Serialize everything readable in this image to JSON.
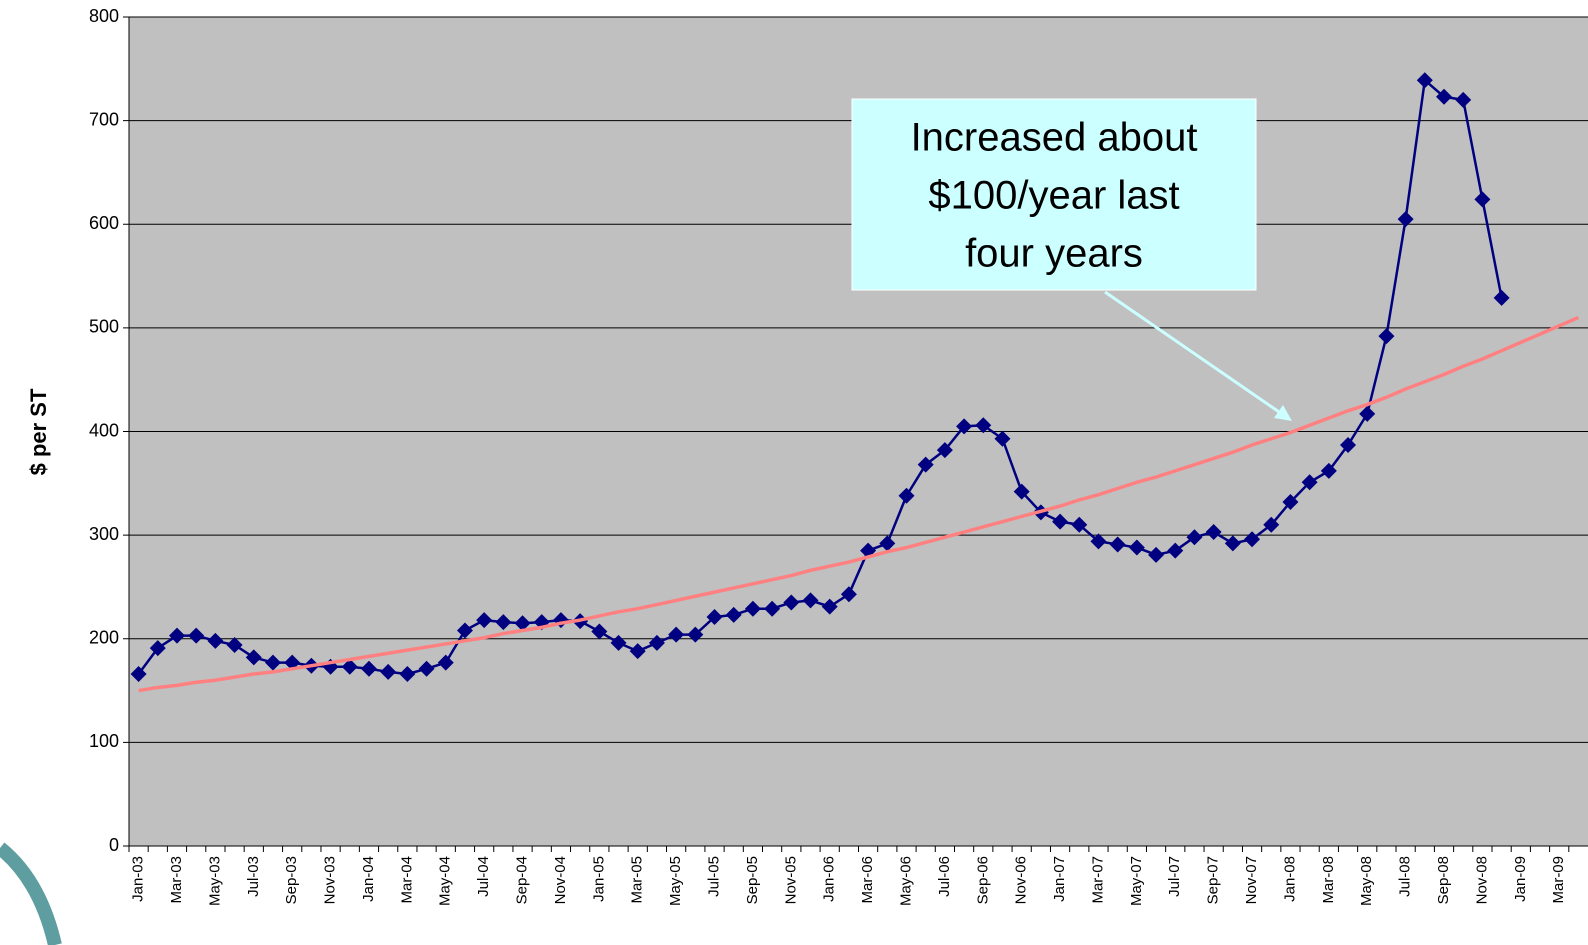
{
  "chart_data": {
    "type": "line",
    "y_label": "$ per ST",
    "annotation": {
      "lines": [
        "Increased about",
        "$100/year last",
        "four years"
      ]
    },
    "categories": [
      "Jan-03",
      null,
      "Mar-03",
      null,
      "May-03",
      null,
      "Jul-03",
      null,
      "Sep-03",
      null,
      "Nov-03",
      null,
      "Jan-04",
      null,
      "Mar-04",
      null,
      "May-04",
      null,
      "Jul-04",
      null,
      "Sep-04",
      null,
      "Nov-04",
      null,
      "Jan-05",
      null,
      "Mar-05",
      null,
      "May-05",
      null,
      "Jul-05",
      null,
      "Sep-05",
      null,
      "Nov-05",
      null,
      "Jan-06",
      null,
      "Mar-06",
      null,
      "May-06",
      null,
      "Jul-06",
      null,
      "Sep-06",
      null,
      "Nov-06",
      null,
      "Jan-07",
      null,
      "Mar-07",
      null,
      "May-07",
      null,
      "Jul-07",
      null,
      "Sep-07",
      null,
      "Nov-07",
      null,
      "Jan-08",
      null,
      "Mar-08",
      null,
      "May-08",
      null,
      "Jul-08",
      null,
      "Sep-08",
      null,
      "Nov-08",
      null,
      "Jan-09",
      null,
      "Mar-09",
      null
    ],
    "series": [
      {
        "color": "#000080",
        "markers": true,
        "values": [
          166,
          191,
          203,
          203,
          198,
          194,
          182,
          177,
          177,
          174,
          173,
          173,
          171,
          168,
          166,
          171,
          177,
          208,
          218,
          216,
          215,
          216,
          218,
          217,
          207,
          196,
          188,
          196,
          204,
          204,
          221,
          223,
          229,
          229,
          235,
          237,
          231,
          243,
          285,
          292,
          338,
          368,
          382,
          405,
          406,
          393,
          342,
          322,
          313,
          310,
          294,
          291,
          288,
          281,
          285,
          298,
          303,
          292,
          296,
          310,
          332,
          351,
          362,
          387,
          417,
          492,
          605,
          739,
          723,
          720,
          624,
          529,
          null,
          null,
          null,
          null
        ]
      },
      {
        "color": "#ff8080",
        "markers": false,
        "values": [
          150,
          153,
          155,
          158,
          160,
          163,
          166,
          168,
          171,
          174,
          177,
          180,
          183,
          186,
          189,
          192,
          195,
          198,
          201,
          205,
          208,
          211,
          215,
          218,
          222,
          226,
          229,
          233,
          237,
          241,
          245,
          249,
          253,
          257,
          261,
          266,
          270,
          274,
          279,
          284,
          288,
          293,
          298,
          303,
          308,
          313,
          318,
          323,
          328,
          334,
          339,
          345,
          351,
          356,
          362,
          368,
          374,
          380,
          387,
          393,
          399,
          406,
          413,
          420,
          426,
          433,
          441,
          448,
          455,
          463,
          470,
          478,
          486,
          494,
          502,
          510
        ]
      }
    ],
    "ylim": [
      0,
      800
    ],
    "yticks": [
      0,
      100,
      200,
      300,
      400,
      500,
      600,
      700,
      800
    ],
    "grid": true
  }
}
